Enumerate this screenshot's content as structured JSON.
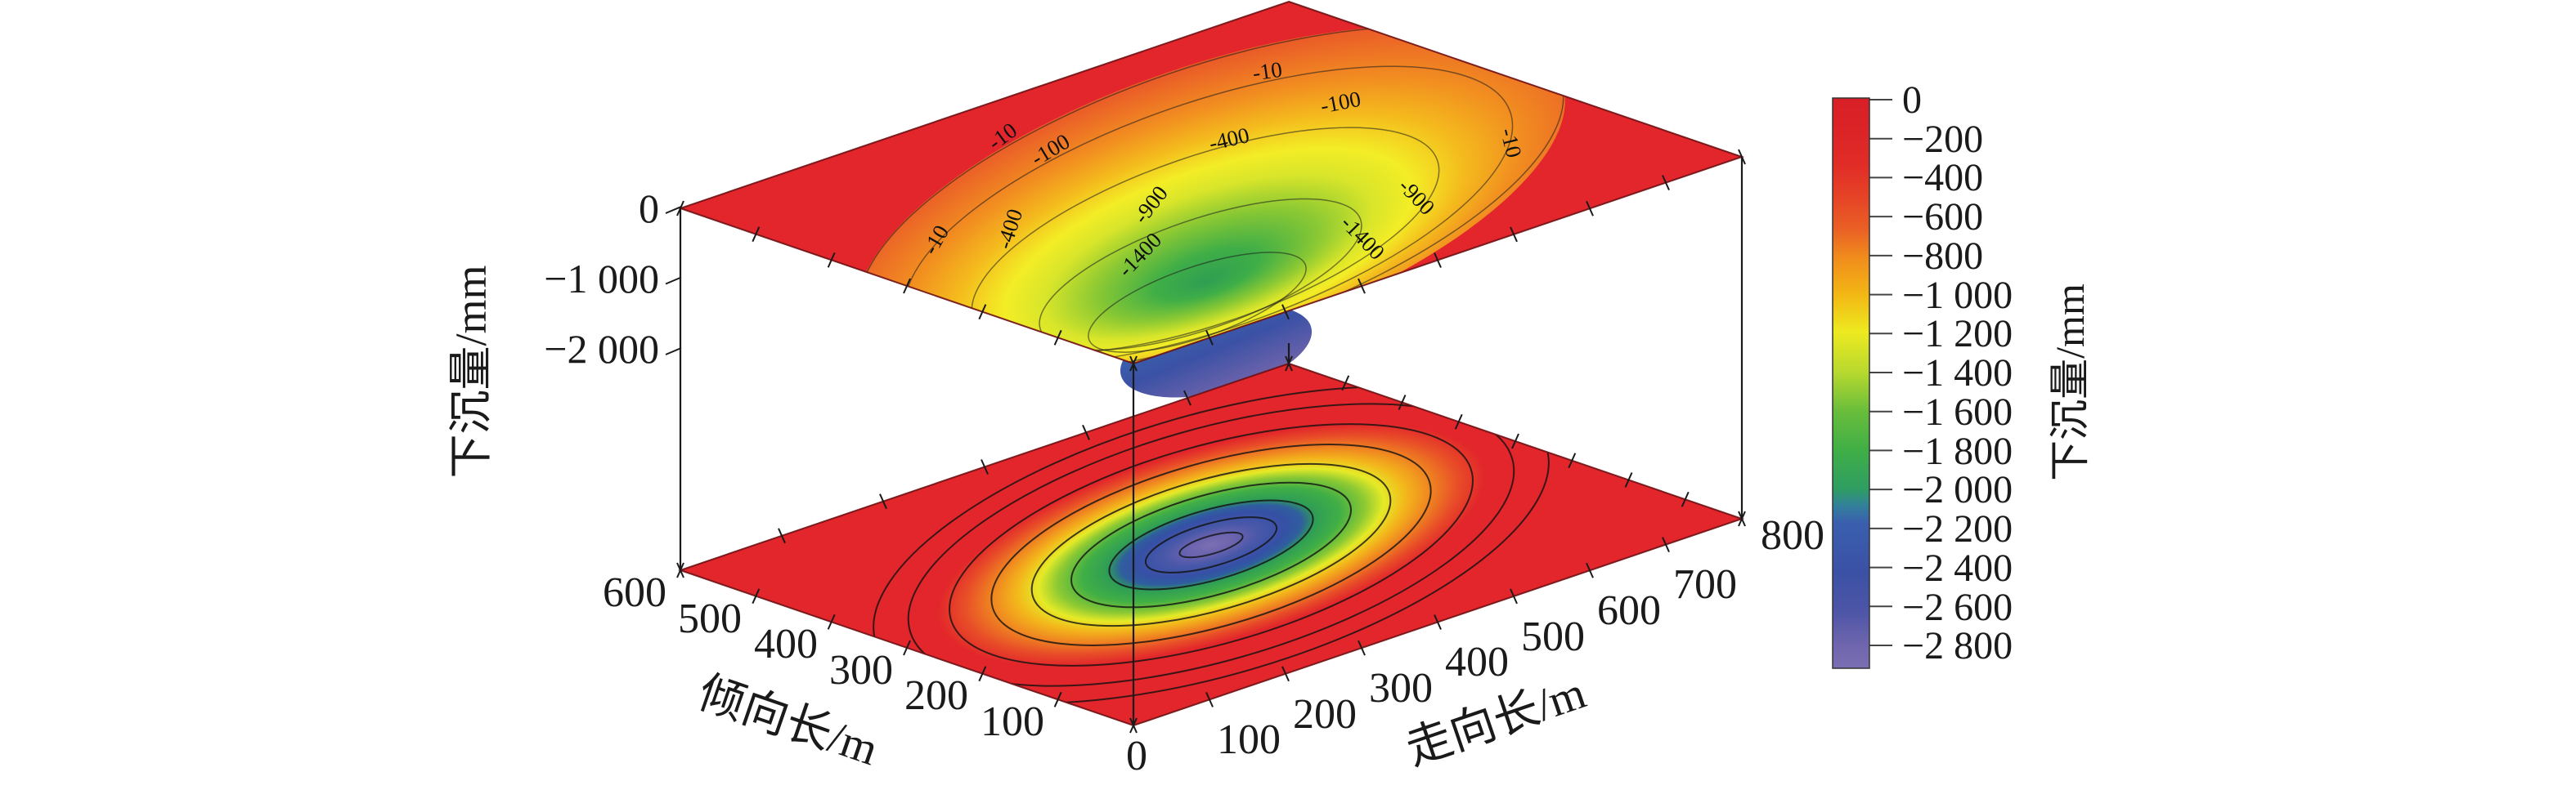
{
  "figure": {
    "background_color": "#ffffff",
    "x_axis": {
      "label": "走向长/m",
      "ticks": [
        "0",
        "100",
        "200",
        "300",
        "400",
        "500",
        "600",
        "700",
        "800"
      ]
    },
    "y_axis": {
      "label": "倾向长/m",
      "ticks": [
        "600",
        "500",
        "400",
        "300",
        "200",
        "100"
      ]
    },
    "z_axis": {
      "label": "下沉量/mm",
      "ticks": [
        "0",
        "−1 000",
        "−2 000"
      ]
    },
    "colorbar": {
      "label": "下沉量/mm",
      "ticks": [
        "0",
        "−200",
        "−400",
        "−600",
        "−800",
        "−1 000",
        "−1 200",
        "−1 400",
        "−1 600",
        "−1 800",
        "−2 000",
        "−2 200",
        "−2 400",
        "−2 600",
        "−2 800"
      ]
    },
    "surface_contour_labels": [
      "-10",
      "-100",
      "-400",
      "-900",
      "-1400",
      "-10",
      "-100",
      "-400",
      "-10",
      "-900",
      "-1400",
      "-10"
    ],
    "colors": {
      "surface_flat_red": "#e2262b",
      "orange": "#f08c1c",
      "yellow": "#edea20",
      "green": "#3fae47",
      "teal": "#2f9e62",
      "blue": "#3a57a9",
      "purple_center": "#7b6fb2"
    }
  },
  "chart_data": {
    "type": "3d_surface_with_bottom_contour_projection",
    "title": "",
    "x_axis": {
      "label": "走向长/m",
      "unit": "m",
      "range": [
        0,
        800
      ],
      "tick_step": 100,
      "tick_values": [
        0,
        100,
        200,
        300,
        400,
        500,
        600,
        700,
        800
      ]
    },
    "y_axis": {
      "label": "倾向长/m",
      "unit": "m",
      "range": [
        0,
        600
      ],
      "tick_step": 100,
      "tick_values": [
        600,
        500,
        400,
        300,
        200,
        100
      ]
    },
    "z_axis": {
      "label": "下沉量/mm",
      "unit": "mm",
      "range": [
        -2800,
        0
      ],
      "labeled_tick_values": [
        0,
        -1000,
        -2000
      ]
    },
    "colorbar": {
      "label": "下沉量/mm",
      "range_top_to_bottom": [
        0,
        -2800
      ],
      "tick_step": -200,
      "tick_values": [
        0,
        -200,
        -400,
        -600,
        -800,
        -1000,
        -1200,
        -1400,
        -1600,
        -1800,
        -2000,
        -2200,
        -2400,
        -2600,
        -2800
      ],
      "gradient_top_to_bottom": [
        {
          "value": 0,
          "color": "#d81f26"
        },
        {
          "value": -400,
          "color": "#e64626"
        },
        {
          "value": -600,
          "color": "#ea6025"
        },
        {
          "value": -800,
          "color": "#f08c1c"
        },
        {
          "value": -1000,
          "color": "#f3b714"
        },
        {
          "value": -1200,
          "color": "#edea20"
        },
        {
          "value": -1400,
          "color": "#b8d92e"
        },
        {
          "value": -1600,
          "color": "#68bd3b"
        },
        {
          "value": -1800,
          "color": "#3fae47"
        },
        {
          "value": -2000,
          "color": "#2f9e62"
        },
        {
          "value": -2200,
          "color": "#3a5fae"
        },
        {
          "value": -2400,
          "color": "#3b51a5"
        },
        {
          "value": -2600,
          "color": "#4d55a7"
        },
        {
          "value": -2800,
          "color": "#6f66ae"
        }
      ]
    },
    "surface": {
      "description": "Flat plane at 0 mm subsidence with an elliptical subsidence bowl at the panel centre; bowl deepens from red (0) through orange, yellow and green to blue/purple at maximum subsidence",
      "flat_level_mm": 0,
      "max_subsidence_mm": -2800,
      "bowl_center_strike_m": 400,
      "bowl_center_dip_m": 300,
      "labeled_contours_mm": [
        -10,
        -100,
        -400,
        -900,
        -1400
      ]
    },
    "projection": {
      "location": "bottom plane",
      "contour_ring_count": 9,
      "labeled_levels_mm": [
        -10,
        -100,
        -400,
        -900,
        -1400
      ],
      "estimated_inner_levels_mm": [
        -1900,
        -2400,
        -2700
      ],
      "center_color": "purple (≈ −2 800 mm)"
    },
    "legend_position": "right colorbar",
    "grid": false
  }
}
